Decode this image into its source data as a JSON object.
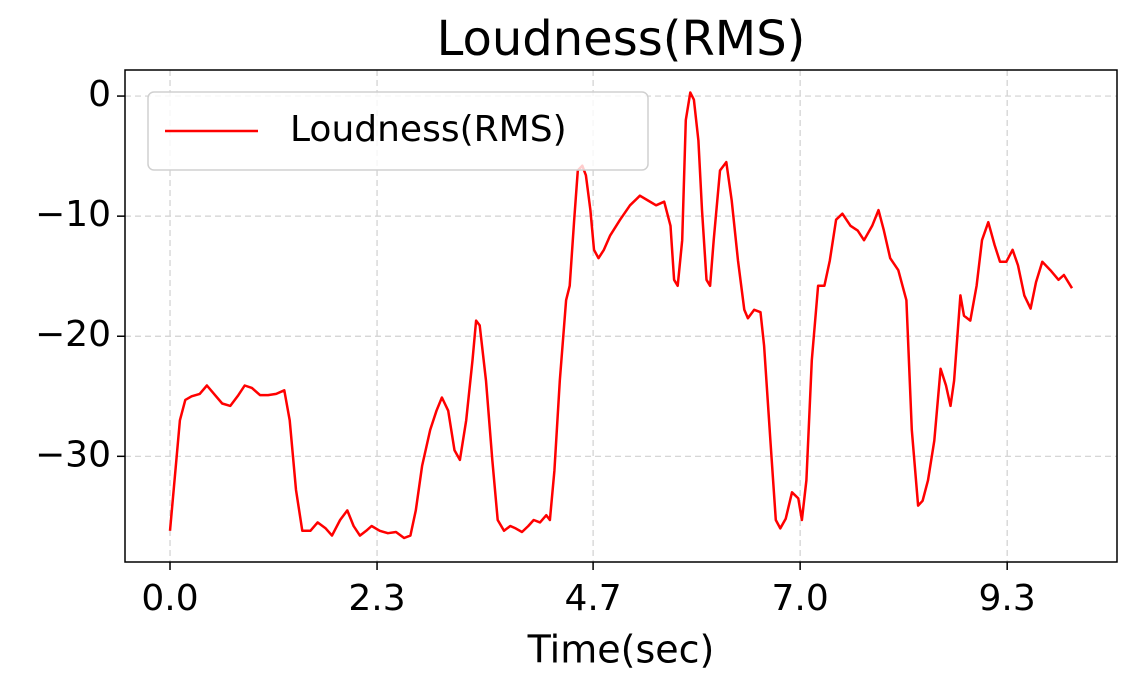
{
  "chart_data": {
    "type": "line",
    "title": "Loudness(RMS)",
    "x_label": "Time(sec)",
    "x": [
      0,
      0.06,
      0.11,
      0.17,
      0.24,
      0.33,
      0.41,
      0.5,
      0.58,
      0.67,
      0.76,
      0.83,
      0.91,
      1.0,
      1.09,
      1.18,
      1.27,
      1.33,
      1.4,
      1.47,
      1.56,
      1.64,
      1.73,
      1.8,
      1.89,
      1.97,
      2.04,
      2.11,
      2.18,
      2.24,
      2.33,
      2.42,
      2.51,
      2.6,
      2.67,
      2.73,
      2.8,
      2.89,
      2.96,
      3.02,
      3.09,
      3.16,
      3.22,
      3.29,
      3.36,
      3.4,
      3.44,
      3.51,
      3.58,
      3.64,
      3.71,
      3.78,
      3.84,
      3.91,
      3.98,
      4.04,
      4.11,
      4.18,
      4.22,
      4.27,
      4.33,
      4.4,
      4.44,
      4.49,
      4.53,
      4.58,
      4.62,
      4.67,
      4.71,
      4.76,
      4.82,
      4.89,
      5.0,
      5.11,
      5.22,
      5.31,
      5.4,
      5.49,
      5.56,
      5.6,
      5.64,
      5.69,
      5.73,
      5.78,
      5.82,
      5.87,
      5.91,
      5.96,
      6.0,
      6.04,
      6.11,
      6.18,
      6.24,
      6.31,
      6.38,
      6.42,
      6.49,
      6.56,
      6.6,
      6.67,
      6.73,
      6.78,
      6.84,
      6.91,
      6.98,
      7.02,
      7.07,
      7.13,
      7.2,
      7.27,
      7.33,
      7.4,
      7.47,
      7.56,
      7.64,
      7.71,
      7.8,
      7.87,
      7.93,
      8.0,
      8.09,
      8.18,
      8.24,
      8.31,
      8.36,
      8.42,
      8.49,
      8.56,
      8.62,
      8.67,
      8.71,
      8.78,
      8.82,
      8.89,
      8.96,
      9.02,
      9.09,
      9.16,
      9.22,
      9.29,
      9.36,
      9.42,
      9.49,
      9.56,
      9.62,
      9.69,
      9.78,
      9.87,
      9.93,
      10.02
    ],
    "series": [
      {
        "name": "Loudness(RMS)",
        "color": "#ff0000",
        "values": [
          -36.2,
          -31.2,
          -27,
          -25.3,
          -25,
          -24.8,
          -24.1,
          -24.9,
          -25.6,
          -25.8,
          -24.9,
          -24.1,
          -24.3,
          -24.9,
          -24.9,
          -24.8,
          -24.5,
          -27,
          -32.8,
          -36.2,
          -36.2,
          -35.5,
          -36,
          -36.6,
          -35.3,
          -34.5,
          -35.8,
          -36.6,
          -36.2,
          -35.8,
          -36.2,
          -36.4,
          -36.3,
          -36.8,
          -36.6,
          -34.5,
          -30.8,
          -27.8,
          -26.2,
          -25.1,
          -26.2,
          -29.5,
          -30.3,
          -27,
          -22,
          -18.7,
          -19.1,
          -23.7,
          -30.3,
          -35.3,
          -36.2,
          -35.8,
          -36,
          -36.3,
          -35.8,
          -35.3,
          -35.5,
          -34.9,
          -35.3,
          -31.2,
          -23.7,
          -17,
          -15.8,
          -10.3,
          -6.2,
          -5.8,
          -6.6,
          -9.5,
          -12.8,
          -13.5,
          -12.8,
          -11.6,
          -10.3,
          -9.1,
          -8.3,
          -8.7,
          -9.1,
          -8.8,
          -10.8,
          -15.3,
          -15.8,
          -12,
          -2,
          0.3,
          -0.3,
          -3.7,
          -9.5,
          -15.3,
          -15.8,
          -12,
          -6.2,
          -5.5,
          -8.7,
          -13.7,
          -17.8,
          -18.5,
          -17.8,
          -18,
          -20.8,
          -28.7,
          -35.3,
          -36,
          -35.2,
          -33,
          -33.5,
          -35.3,
          -32,
          -22,
          -15.8,
          -15.8,
          -13.7,
          -10.3,
          -9.8,
          -10.8,
          -11.2,
          -12,
          -10.8,
          -9.5,
          -11.2,
          -13.5,
          -14.5,
          -17,
          -27.8,
          -34.1,
          -33.7,
          -32,
          -28.7,
          -22.7,
          -24.1,
          -25.8,
          -23.7,
          -16.6,
          -18.3,
          -18.7,
          -15.8,
          -12,
          -10.5,
          -12.4,
          -13.8,
          -13.8,
          -12.8,
          -14.1,
          -16.6,
          -17.7,
          -15.5,
          -13.8,
          -14.5,
          -15.3,
          -14.9,
          -16
        ]
      }
    ],
    "xlim": [
      -0.5,
      10.52
    ],
    "ylim": [
      -38.8,
      2.17
    ],
    "xticks": [
      {
        "value": 0,
        "label": "0.0"
      },
      2.3,
      4.7,
      {
        "value": 7,
        "label": "7.0"
      },
      9.3
    ],
    "yticks": [
      {
        "value": 0,
        "label": "0"
      },
      {
        "value": -10,
        "label": "−10"
      },
      {
        "value": -20,
        "label": "−20"
      },
      {
        "value": -30,
        "label": "−30"
      }
    ],
    "grid": true,
    "legend": "upper left"
  }
}
